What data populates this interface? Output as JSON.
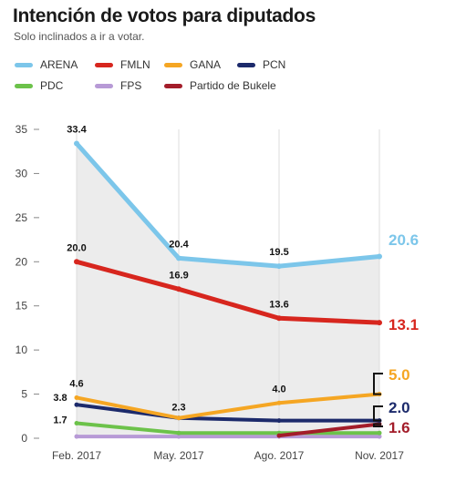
{
  "header": {
    "title": "Intención de votos para diputados",
    "subtitle": "Solo inclinados a ir a votar."
  },
  "chart_data": {
    "type": "line",
    "title": "Intención de votos para diputados",
    "subtitle": "Solo inclinados a ir a votar.",
    "categories": [
      "Feb. 2017",
      "May. 2017",
      "Ago. 2017",
      "Nov. 2017"
    ],
    "ylim": [
      0,
      35
    ],
    "yticks": [
      0,
      5,
      10,
      15,
      20,
      25,
      30,
      35
    ],
    "grid": "vertical",
    "legend_position": "top",
    "series": [
      {
        "name": "ARENA",
        "color": "#7cc6ea",
        "values": [
          33.4,
          20.4,
          19.5,
          20.6
        ],
        "labels": [
          "33.4",
          "20.4",
          "19.5",
          "20.6"
        ]
      },
      {
        "name": "FMLN",
        "color": "#d7261e",
        "values": [
          20.0,
          16.9,
          13.6,
          13.1
        ],
        "labels": [
          "20.0",
          "16.9",
          "13.6",
          "13.1"
        ]
      },
      {
        "name": "GANA",
        "color": "#f5a623",
        "values": [
          4.6,
          2.3,
          4.0,
          5.0
        ],
        "labels": [
          "4.6",
          "",
          "4.0",
          "5.0"
        ]
      },
      {
        "name": "PCN",
        "color": "#1c2a6b",
        "values": [
          3.8,
          2.3,
          2.0,
          2.0
        ],
        "labels": [
          "3.8",
          "2.3",
          "",
          "2.0"
        ]
      },
      {
        "name": "PDC",
        "color": "#6cc24a",
        "values": [
          1.7,
          0.6,
          0.6,
          0.6
        ],
        "labels": [
          "1.7",
          "",
          "",
          ""
        ]
      },
      {
        "name": "FPS",
        "color": "#b79ad6",
        "values": [
          0.2,
          0.2,
          0.2,
          0.2
        ],
        "labels": [
          "",
          "",
          "",
          ""
        ]
      },
      {
        "name": "Partido de Bukele",
        "color": "#a31d2a",
        "values": [
          null,
          null,
          0.3,
          1.6
        ],
        "labels": [
          "",
          "",
          "",
          "1.6"
        ]
      }
    ]
  }
}
